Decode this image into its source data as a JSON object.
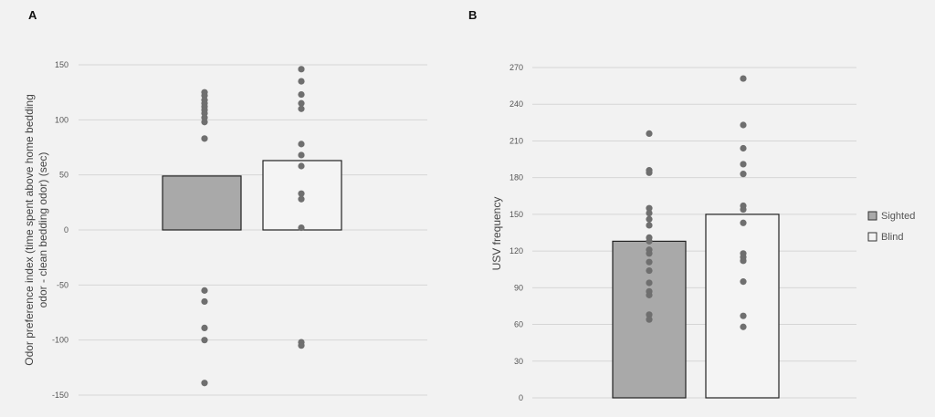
{
  "colors": {
    "background": "#f2f2f2",
    "grid": "#d6d6d6",
    "sighted_fill": "#a9a9a9",
    "blind_fill": "#f4f4f4",
    "bar_stroke": "#222222",
    "points": "#6f6f6f"
  },
  "legend": [
    {
      "label": "Sighted",
      "color": "#a9a9a9"
    },
    {
      "label": "Blind",
      "color": "#f4f4f4"
    }
  ],
  "chart_data": [
    {
      "panel_label": "A",
      "type": "bar",
      "categories": [
        "Sighted",
        "Blind"
      ],
      "values": [
        49,
        63
      ],
      "ylabel_line1": "Odor preference index (time spent above home bedding",
      "ylabel_line2": "odor - clean bedding odor) (sec)",
      "xlabel": "",
      "ylim": [
        -150,
        150
      ],
      "yticks": [
        150,
        100,
        50,
        0,
        -50,
        -100,
        -150
      ],
      "grid": true,
      "points": [
        [
          125,
          122,
          118,
          115,
          112,
          109,
          106,
          102,
          98,
          83,
          -55,
          -65,
          -89,
          -100,
          -139
        ],
        [
          146,
          135,
          123,
          115,
          110,
          78,
          68,
          58,
          33,
          28,
          2,
          -102,
          -105
        ]
      ]
    },
    {
      "panel_label": "B",
      "type": "bar",
      "categories": [
        "Sighted",
        "Blind"
      ],
      "values": [
        128,
        150
      ],
      "ylabel": "USV frequency",
      "xlabel": "",
      "ylim": [
        0,
        270
      ],
      "yticks": [
        270,
        240,
        210,
        180,
        150,
        120,
        90,
        60,
        30,
        0
      ],
      "grid": true,
      "legend_position": "right",
      "points": [
        [
          216,
          186,
          184,
          155,
          151,
          146,
          141,
          131,
          128,
          121,
          118,
          111,
          104,
          94,
          87,
          84,
          68,
          64
        ],
        [
          261,
          223,
          204,
          191,
          183,
          157,
          154,
          143,
          118,
          115,
          112,
          95,
          67,
          58
        ]
      ]
    }
  ]
}
